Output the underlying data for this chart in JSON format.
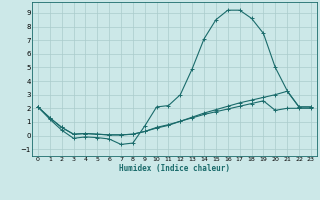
{
  "bg_color": "#cce8e8",
  "grid_color": "#aacccc",
  "line_color": "#1a6b6b",
  "marker": "+",
  "xlabel": "Humidex (Indice chaleur)",
  "xlim": [
    -0.5,
    23.5
  ],
  "ylim": [
    -1.5,
    9.8
  ],
  "xticks": [
    0,
    1,
    2,
    3,
    4,
    5,
    6,
    7,
    8,
    9,
    10,
    11,
    12,
    13,
    14,
    15,
    16,
    17,
    18,
    19,
    20,
    21,
    22,
    23
  ],
  "yticks": [
    -1,
    0,
    1,
    2,
    3,
    4,
    5,
    6,
    7,
    8,
    9
  ],
  "curve1_x": [
    0,
    1,
    2,
    3,
    4,
    5,
    6,
    7,
    8,
    9,
    10,
    11,
    12,
    13,
    14,
    15,
    16,
    17,
    18,
    19,
    20,
    21,
    22,
    23
  ],
  "curve1_y": [
    2.1,
    1.2,
    0.4,
    -0.2,
    -0.1,
    -0.15,
    -0.25,
    -0.65,
    -0.55,
    0.7,
    2.1,
    2.2,
    3.0,
    4.9,
    7.1,
    8.5,
    9.2,
    9.2,
    8.6,
    7.5,
    5.0,
    3.3,
    2.1,
    2.1
  ],
  "curve2_x": [
    0,
    1,
    2,
    3,
    4,
    5,
    6,
    7,
    8,
    9,
    10,
    11,
    12,
    13,
    14,
    15,
    16,
    17,
    18,
    19,
    20,
    21,
    22,
    23
  ],
  "curve2_y": [
    2.1,
    1.3,
    0.6,
    0.1,
    0.15,
    0.1,
    0.05,
    0.05,
    0.1,
    0.3,
    0.55,
    0.75,
    1.05,
    1.35,
    1.65,
    1.9,
    2.15,
    2.4,
    2.6,
    2.8,
    3.0,
    3.25,
    2.1,
    2.1
  ],
  "curve3_x": [
    0,
    1,
    2,
    3,
    4,
    5,
    6,
    7,
    8,
    9,
    10,
    11,
    12,
    13,
    14,
    15,
    16,
    17,
    18,
    19,
    20,
    21,
    22,
    23
  ],
  "curve3_y": [
    2.1,
    1.3,
    0.6,
    0.1,
    0.15,
    0.1,
    0.05,
    0.05,
    0.1,
    0.3,
    0.6,
    0.8,
    1.05,
    1.3,
    1.55,
    1.75,
    1.95,
    2.15,
    2.35,
    2.55,
    1.85,
    2.0,
    2.0,
    2.0
  ]
}
